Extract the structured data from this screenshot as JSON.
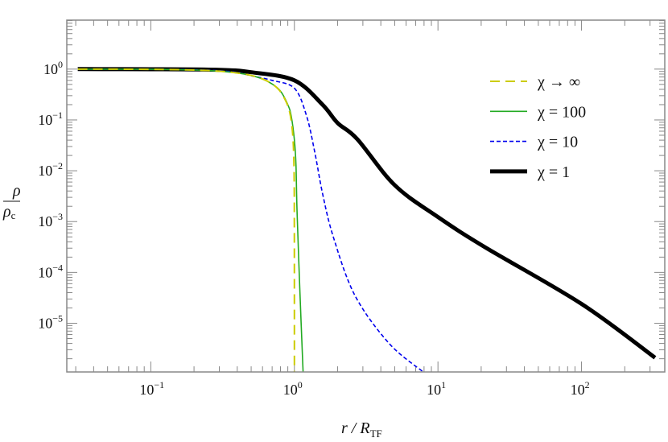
{
  "chart_data": {
    "type": "line",
    "title": "",
    "xlabel": {
      "main": "r / R",
      "sub": "TF"
    },
    "ylabel": {
      "numerator": "ρ",
      "denominator": "ρ",
      "denominator_sub": "c"
    },
    "xscale": "log",
    "yscale": "log",
    "xlim": [
      0.026,
      380
    ],
    "ylim": [
      1.1e-06,
      9.2
    ],
    "grid": false,
    "legend_position": "top-right",
    "x_ticks": [
      {
        "value": 0.1,
        "base": "10",
        "exp": "−1"
      },
      {
        "value": 1,
        "base": "10",
        "exp": "0"
      },
      {
        "value": 10,
        "base": "10",
        "exp": "1"
      },
      {
        "value": 100,
        "base": "10",
        "exp": "2"
      }
    ],
    "y_ticks": [
      {
        "value": 1,
        "base": "10",
        "exp": "0"
      },
      {
        "value": 0.1,
        "base": "10",
        "exp": "−1"
      },
      {
        "value": 0.01,
        "base": "10",
        "exp": "−2"
      },
      {
        "value": 0.001,
        "base": "10",
        "exp": "−3"
      },
      {
        "value": 0.0001,
        "base": "10",
        "exp": "−4"
      },
      {
        "value": 1e-05,
        "base": "10",
        "exp": "−5"
      }
    ],
    "series": [
      {
        "name": "χ → ∞",
        "color": "#cccc00",
        "style": "long-dash",
        "width": 2,
        "x": [
          0.031,
          0.1,
          0.2,
          0.3,
          0.4,
          0.5,
          0.6,
          0.7,
          0.8,
          0.9,
          0.95,
          0.98,
          0.995,
          0.9995,
          1.0
        ],
        "y": [
          0.999,
          0.99,
          0.96,
          0.91,
          0.84,
          0.75,
          0.64,
          0.51,
          0.36,
          0.19,
          0.0975,
          0.0396,
          0.00998,
          0.001,
          1.1e-06
        ]
      },
      {
        "name": "χ = 100",
        "color": "#22aa22",
        "style": "solid",
        "width": 1.6,
        "x": [
          0.031,
          0.1,
          0.2,
          0.3,
          0.4,
          0.5,
          0.6,
          0.7,
          0.8,
          0.9,
          0.95,
          1.0,
          1.026,
          1.045,
          1.095,
          1.15
        ],
        "y": [
          0.999,
          0.99,
          0.96,
          0.91,
          0.84,
          0.75,
          0.64,
          0.51,
          0.37,
          0.2,
          0.12,
          0.04,
          0.0126,
          0.0014,
          3.6e-05,
          1.1e-06
        ]
      },
      {
        "name": "χ = 10",
        "color": "#0000ee",
        "style": "short-dash",
        "width": 1.6,
        "x": [
          0.031,
          0.1,
          0.2,
          0.3,
          0.4,
          0.5,
          0.7,
          1.0,
          1.21,
          1.38,
          1.57,
          1.86,
          2.63,
          4.57,
          7.9
        ],
        "y": [
          0.999,
          0.995,
          0.97,
          0.93,
          0.86,
          0.74,
          0.6,
          0.42,
          0.126,
          0.025,
          0.0036,
          0.00052,
          3.6e-05,
          4e-06,
          1.1e-06
        ]
      },
      {
        "name": "χ = 1",
        "color": "#000000",
        "style": "solid",
        "width": 5,
        "x": [
          0.031,
          0.1,
          0.3,
          0.5,
          1,
          1.57,
          2,
          2.74,
          5,
          10,
          21,
          100,
          325
        ],
        "y": [
          1,
          0.995,
          0.97,
          0.87,
          0.6,
          0.2,
          0.087,
          0.042,
          0.0052,
          0.00123,
          0.00032,
          2.4e-05,
          2.1e-06
        ]
      }
    ]
  }
}
